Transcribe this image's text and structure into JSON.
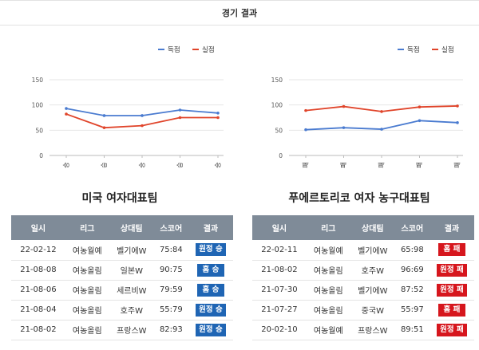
{
  "page_title": "경기 결과",
  "colors": {
    "score": "#4a7bd0",
    "conceded": "#e0442a",
    "win": "#1f65b4",
    "loss": "#d6161d",
    "header": "#7f8b98"
  },
  "legend": {
    "score_label": "득점",
    "conceded_label": "실점"
  },
  "chart_data": [
    {
      "type": "line",
      "categories": [
        "승",
        "승",
        "승",
        "승",
        "승"
      ],
      "series": [
        {
          "name": "득점",
          "values": [
            93,
            79,
            79,
            90,
            84
          ]
        },
        {
          "name": "실점",
          "values": [
            82,
            55,
            59,
            75,
            75
          ]
        }
      ],
      "yticks": [
        0,
        50,
        100,
        150
      ],
      "ylim": [
        0,
        150
      ],
      "grid": true,
      "legend_position": "top-right"
    },
    {
      "type": "line",
      "categories": [
        "패",
        "패",
        "패",
        "패",
        "패"
      ],
      "series": [
        {
          "name": "득점",
          "values": [
            51,
            55,
            52,
            69,
            65
          ]
        },
        {
          "name": "실점",
          "values": [
            89,
            97,
            87,
            96,
            98
          ]
        }
      ],
      "yticks": [
        0,
        50,
        100,
        150
      ],
      "ylim": [
        0,
        150
      ],
      "grid": true,
      "legend_position": "top-right"
    }
  ],
  "teams": [
    {
      "name": "미국 여자대표팀",
      "headers": [
        "일시",
        "리그",
        "상대팀",
        "스코어",
        "결과"
      ],
      "rows": [
        {
          "date": "22-02-12",
          "league": "여농월예",
          "opponent": "벨기에W",
          "score": "75:84",
          "result": "원정 승",
          "outcome": "win"
        },
        {
          "date": "21-08-08",
          "league": "여농올림",
          "opponent": "일본W",
          "score": "90:75",
          "result": "홈 승",
          "outcome": "win"
        },
        {
          "date": "21-08-06",
          "league": "여농올림",
          "opponent": "세르비W",
          "score": "79:59",
          "result": "홈 승",
          "outcome": "win"
        },
        {
          "date": "21-08-04",
          "league": "여농올림",
          "opponent": "호주W",
          "score": "55:79",
          "result": "원정 승",
          "outcome": "win"
        },
        {
          "date": "21-08-02",
          "league": "여농올림",
          "opponent": "프랑스W",
          "score": "82:93",
          "result": "원정 승",
          "outcome": "win"
        }
      ]
    },
    {
      "name": "푸에르토리코 여자 농구대표팀",
      "headers": [
        "일시",
        "리그",
        "상대팀",
        "스코어",
        "결과"
      ],
      "rows": [
        {
          "date": "22-02-11",
          "league": "여농월예",
          "opponent": "벨기에W",
          "score": "65:98",
          "result": "홈 패",
          "outcome": "loss"
        },
        {
          "date": "21-08-02",
          "league": "여농올림",
          "opponent": "호주W",
          "score": "96:69",
          "result": "원정 패",
          "outcome": "loss"
        },
        {
          "date": "21-07-30",
          "league": "여농올림",
          "opponent": "벨기에W",
          "score": "87:52",
          "result": "원정 패",
          "outcome": "loss"
        },
        {
          "date": "21-07-27",
          "league": "여농올림",
          "opponent": "중국W",
          "score": "55:97",
          "result": "홈 패",
          "outcome": "loss"
        },
        {
          "date": "20-02-10",
          "league": "여농월예",
          "opponent": "프랑스W",
          "score": "89:51",
          "result": "원정 패",
          "outcome": "loss"
        }
      ]
    }
  ]
}
